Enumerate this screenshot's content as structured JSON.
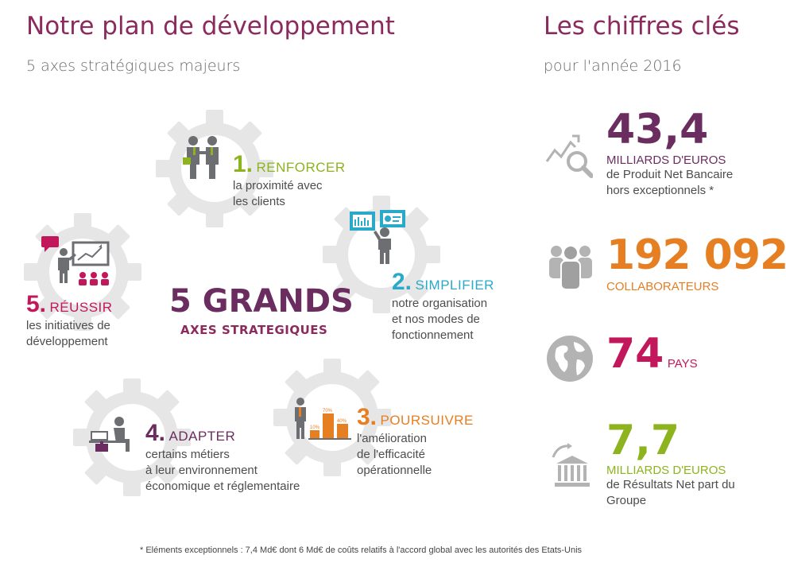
{
  "left": {
    "title": "Notre plan de développement",
    "subtitle": "5 axes stratégiques majeurs",
    "center": {
      "big": "5 GRANDS",
      "sub": "AXES STRATEGIQUES"
    },
    "axes": [
      {
        "num": "1.",
        "word": "RENFORCER",
        "desc": [
          "la proximité avec",
          "les clients"
        ],
        "color": "#8db31f"
      },
      {
        "num": "2.",
        "word": "SIMPLIFIER",
        "desc": [
          "notre organisation",
          "et nos modes de",
          "fonctionnement"
        ],
        "color": "#2aa9c9"
      },
      {
        "num": "3.",
        "word": "POURSUIVRE",
        "desc": [
          "l'amélioration",
          "de l'efficacité",
          "opérationnelle"
        ],
        "color": "#e67e22"
      },
      {
        "num": "4.",
        "word": "ADAPTER",
        "desc": [
          "certains métiers",
          "à leur environnement",
          "économique et réglementaire"
        ],
        "color": "#6b2d5f"
      },
      {
        "num": "5.",
        "word": "RÉUSSIR",
        "desc": [
          "les initiatives de",
          "développement"
        ],
        "color": "#c2185b"
      }
    ],
    "chart_labels": {
      "a": "10%",
      "b": "70%",
      "c": "40%"
    }
  },
  "right": {
    "title": "Les chiffres clés",
    "subtitle": "pour l'année 2016",
    "kpis": [
      {
        "value": "43,4",
        "label": "MILLIARDS D'EUROS",
        "desc": [
          "de Produit Net Bancaire",
          "hors exceptionnels *"
        ],
        "color": "#6b2d5f",
        "icon": "chart-magnifier-icon"
      },
      {
        "value": "192 092",
        "label": "COLLABORATEURS",
        "desc": [],
        "color": "#e67e22",
        "icon": "people-group-icon"
      },
      {
        "value": "74",
        "label": "PAYS",
        "desc": [],
        "color": "#c2185b",
        "icon": "globe-icon"
      },
      {
        "value": "7,7",
        "label": "MILLIARDS D'EUROS",
        "desc": [
          "de Résultats Net part du",
          "Groupe"
        ],
        "color": "#8db31f",
        "icon": "bank-building-icon"
      }
    ]
  },
  "footnote": "* Eléments exceptionnels : 7,4 Md€ dont 6 Md€ de coûts relatifs à l'accord global avec les autorités des Etats-Unis"
}
